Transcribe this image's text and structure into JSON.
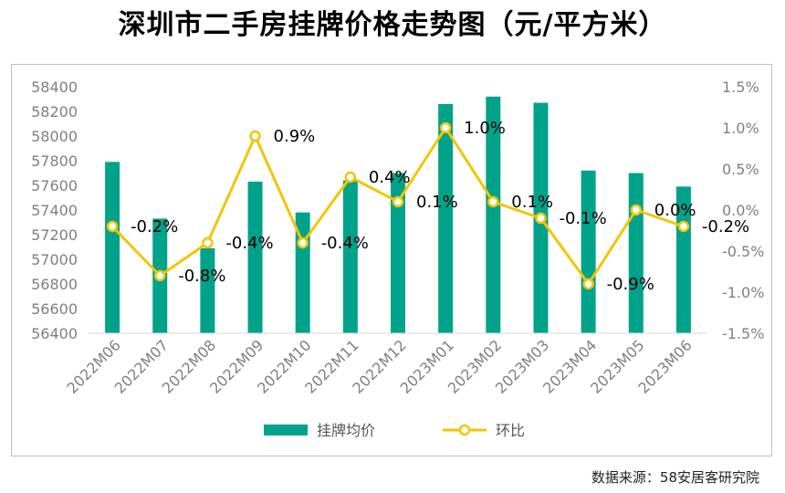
{
  "title": "深圳市二手房挂牌价格走势图（元/平方米）",
  "source": "数据来源：58安居客研究院",
  "colors": {
    "bar": "#00a38a",
    "line": "#f5c400",
    "marker_fill": "#ffffff",
    "axis_text": "#7f7f7f",
    "grid": "#d9d9d9"
  },
  "chart_data": {
    "type": "bar",
    "title": "深圳市二手房挂牌价格走势图（元/平方米）",
    "categories": [
      "2022M06",
      "2022M07",
      "2022M08",
      "2022M09",
      "2022M10",
      "2022M11",
      "2022M12",
      "2023M01",
      "2023M02",
      "2023M03",
      "2023M04",
      "2023M05",
      "2023M06"
    ],
    "y_left_ticks": [
      "56400",
      "56600",
      "56800",
      "57000",
      "57200",
      "57400",
      "57600",
      "57800",
      "58000",
      "58200",
      "58400"
    ],
    "y_right_ticks": [
      "1.5%",
      "1.0%",
      "0.5%",
      "0.0%",
      "-0.5%",
      "-1.0%",
      "-1.5%"
    ],
    "ylim_left": [
      56400,
      58400
    ],
    "ylim_right": [
      -1.5,
      1.5
    ],
    "grid": false,
    "legend_position": "bottom",
    "series": [
      {
        "name": "挂牌均价",
        "type": "bar",
        "axis": "left",
        "values": [
          57790,
          57330,
          57090,
          57630,
          57380,
          57640,
          57700,
          58260,
          58320,
          58270,
          57720,
          57700,
          57590
        ]
      },
      {
        "name": "环比",
        "type": "line",
        "axis": "right",
        "values": [
          -0.2,
          -0.8,
          -0.4,
          0.9,
          -0.4,
          0.4,
          0.1,
          1.0,
          0.1,
          -0.1,
          -0.9,
          0.0,
          -0.2
        ],
        "labels": [
          "-0.2%",
          "-0.8%",
          "-0.4%",
          "0.9%",
          "-0.4%",
          "0.4%",
          "0.1%",
          "1.0%",
          "0.1%",
          "-0.1%",
          "-0.9%",
          "0.0%",
          "-0.2%"
        ]
      }
    ]
  }
}
